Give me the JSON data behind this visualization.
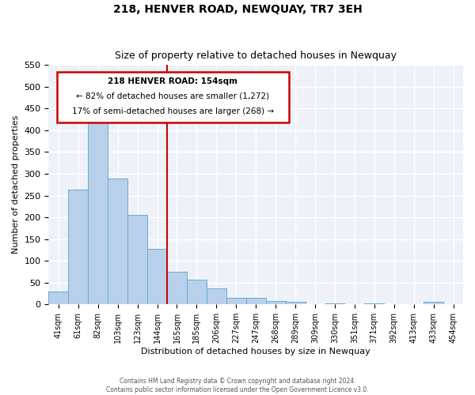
{
  "title": "218, HENVER ROAD, NEWQUAY, TR7 3EH",
  "subtitle": "Size of property relative to detached houses in Newquay",
  "xlabel": "Distribution of detached houses by size in Newquay",
  "ylabel": "Number of detached properties",
  "categories": [
    "41sqm",
    "61sqm",
    "82sqm",
    "103sqm",
    "123sqm",
    "144sqm",
    "165sqm",
    "185sqm",
    "206sqm",
    "227sqm",
    "247sqm",
    "268sqm",
    "289sqm",
    "309sqm",
    "330sqm",
    "351sqm",
    "371sqm",
    "392sqm",
    "413sqm",
    "433sqm",
    "454sqm"
  ],
  "values": [
    30,
    263,
    420,
    290,
    205,
    127,
    75,
    57,
    37,
    15,
    15,
    7,
    5,
    0,
    3,
    0,
    2,
    0,
    0,
    5,
    0
  ],
  "bar_color": "#b8d0ea",
  "bar_edge_color": "#6aaad4",
  "vline_color": "#cc0000",
  "annotation_title": "218 HENVER ROAD: 154sqm",
  "annotation_line1": "← 82% of detached houses are smaller (1,272)",
  "annotation_line2": "17% of semi-detached houses are larger (268) →",
  "annotation_box_color": "#cc0000",
  "ylim": [
    0,
    550
  ],
  "yticks": [
    0,
    50,
    100,
    150,
    200,
    250,
    300,
    350,
    400,
    450,
    500,
    550
  ],
  "footer_line1": "Contains HM Land Registry data © Crown copyright and database right 2024.",
  "footer_line2": "Contains public sector information licensed under the Open Government Licence v3.0.",
  "background_color": "#eef2f8",
  "grid_color": "#ffffff",
  "title_fontsize": 10,
  "subtitle_fontsize": 9
}
